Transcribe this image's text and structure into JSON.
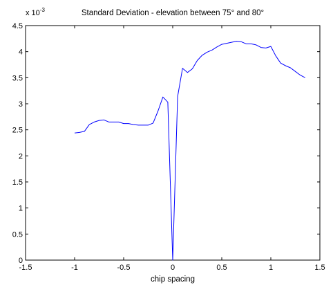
{
  "chart_data": {
    "type": "line",
    "title": "Standard Deviation  - elevation between 75° and 80°",
    "xlabel": "chip spacing",
    "ylabel": "",
    "y_scale_label": "x 10",
    "y_scale_exponent": "-3",
    "xlim": [
      -1.5,
      1.5
    ],
    "ylim": [
      0,
      4.5
    ],
    "grid": false,
    "x_ticks": [
      -1.5,
      -1,
      -0.5,
      0,
      0.5,
      1,
      1.5
    ],
    "x_tick_labels": [
      "-1.5",
      "-1",
      "-0.5",
      "0",
      "0.5",
      "1",
      "1.5"
    ],
    "y_ticks": [
      0,
      0.5,
      1,
      1.5,
      2,
      2.5,
      3,
      3.5,
      4,
      4.5
    ],
    "y_tick_labels": [
      "0",
      "0.5",
      "1",
      "1.5",
      "2",
      "2.5",
      "3",
      "3.5",
      "4",
      "4.5"
    ],
    "series_color": "#0000ff",
    "series": [
      {
        "x": [
          -1.0,
          -0.95,
          -0.9,
          -0.85,
          -0.8,
          -0.75,
          -0.7,
          -0.65,
          -0.6,
          -0.55,
          -0.5,
          -0.45,
          -0.4,
          -0.35,
          -0.3,
          -0.25,
          -0.2,
          -0.15,
          -0.1,
          -0.05,
          0.0,
          0.05,
          0.1,
          0.15,
          0.2,
          0.25,
          0.3,
          0.35,
          0.4,
          0.45,
          0.5,
          0.55,
          0.6,
          0.65,
          0.7,
          0.75,
          0.8,
          0.85,
          0.9,
          0.95,
          1.0,
          1.05,
          1.1,
          1.15,
          1.2,
          1.25,
          1.3,
          1.35
        ],
        "y": [
          2.44,
          2.45,
          2.47,
          2.6,
          2.65,
          2.68,
          2.69,
          2.65,
          2.65,
          2.65,
          2.62,
          2.62,
          2.6,
          2.59,
          2.59,
          2.59,
          2.63,
          2.86,
          3.13,
          3.03,
          0.0,
          3.14,
          3.68,
          3.6,
          3.67,
          3.83,
          3.93,
          3.99,
          4.03,
          4.09,
          4.14,
          4.16,
          4.18,
          4.2,
          4.19,
          4.15,
          4.15,
          4.13,
          4.08,
          4.07,
          4.1,
          3.92,
          3.78,
          3.73,
          3.69,
          3.62,
          3.55,
          3.5
        ]
      }
    ]
  }
}
